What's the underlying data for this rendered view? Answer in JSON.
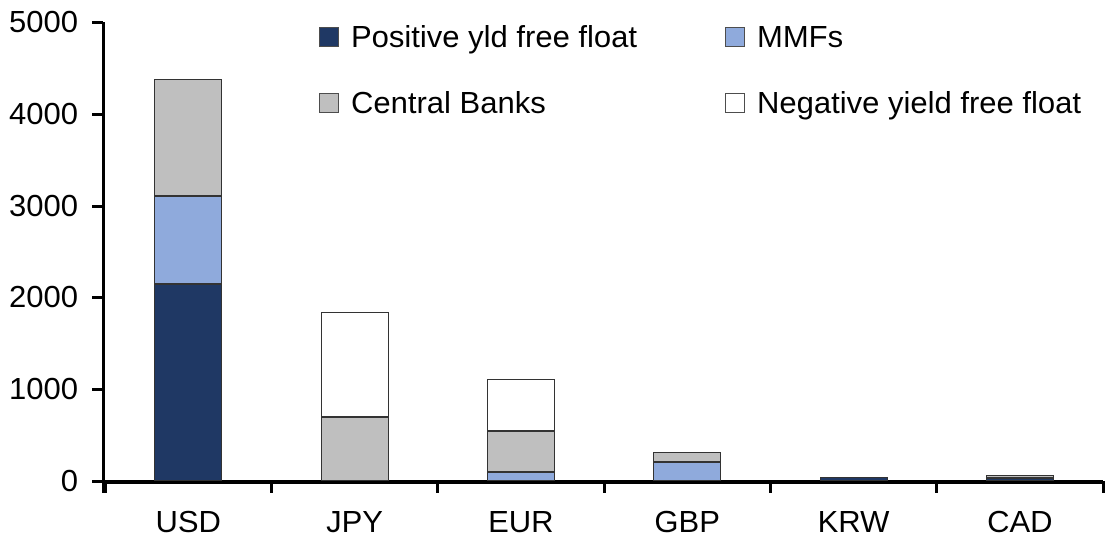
{
  "chart_data": {
    "type": "bar",
    "stacked": true,
    "title": "",
    "xlabel": "",
    "ylabel": "",
    "categories": [
      "USD",
      "JPY",
      "EUR",
      "GBP",
      "KRW",
      "CAD"
    ],
    "series": [
      {
        "name": "Positive yld free float",
        "color": "#1F3864",
        "values": [
          2150,
          0,
          0,
          0,
          40,
          30
        ]
      },
      {
        "name": "MMFs",
        "color": "#8FAADC",
        "values": [
          950,
          0,
          100,
          210,
          0,
          0
        ]
      },
      {
        "name": "Central Banks",
        "color": "#BFBFBF",
        "values": [
          1280,
          700,
          440,
          110,
          0,
          30
        ]
      },
      {
        "name": "Negative yield free float",
        "color": "#FFFFFF",
        "values": [
          0,
          1140,
          570,
          0,
          0,
          0
        ]
      }
    ],
    "ylim": [
      0,
      5000
    ],
    "yticks": [
      0,
      1000,
      2000,
      3000,
      4000,
      5000
    ],
    "ytick_labels": [
      "0",
      "1000",
      "2000",
      "3000",
      "4000",
      "5000"
    ],
    "grid": false,
    "legend_position": "top",
    "legend_columns": 2,
    "axis_color": "#000000",
    "segment_border_color": "#333333",
    "background_color": "#FFFFFF"
  }
}
